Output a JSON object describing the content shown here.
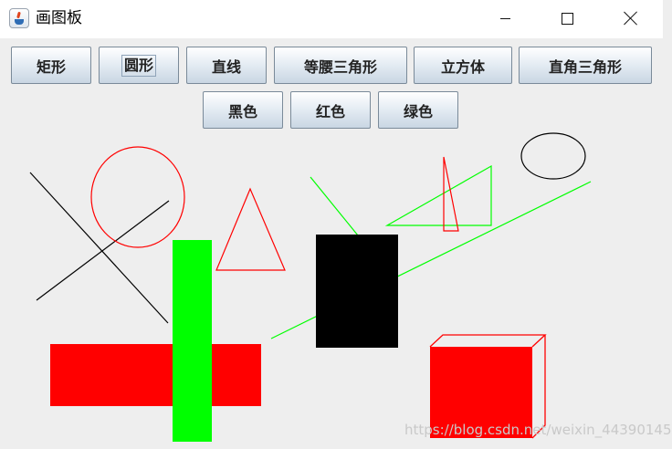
{
  "window": {
    "title": "画图板",
    "icon": "java-cup-icon"
  },
  "toolbar": {
    "row1": [
      "矩形",
      "圆形",
      "直线",
      "等腰三角形",
      "立方体",
      "直角三角形"
    ],
    "row2": [
      "黑色",
      "红色",
      "绿色"
    ],
    "focused": "圆形"
  },
  "colors": {
    "black": "#000000",
    "red": "#ff0000",
    "green": "#00ff00",
    "background": "#eeeeee"
  },
  "canvas": {
    "shapes": [
      "line",
      "circle",
      "line",
      "isosceles-triangle",
      "filled-rect",
      "filled-rect",
      "line",
      "filled-rect",
      "right-triangle",
      "isosceles-triangle",
      "oval",
      "line",
      "cube"
    ]
  },
  "watermark": "https://blog.csdn.net/weixin_44390145"
}
